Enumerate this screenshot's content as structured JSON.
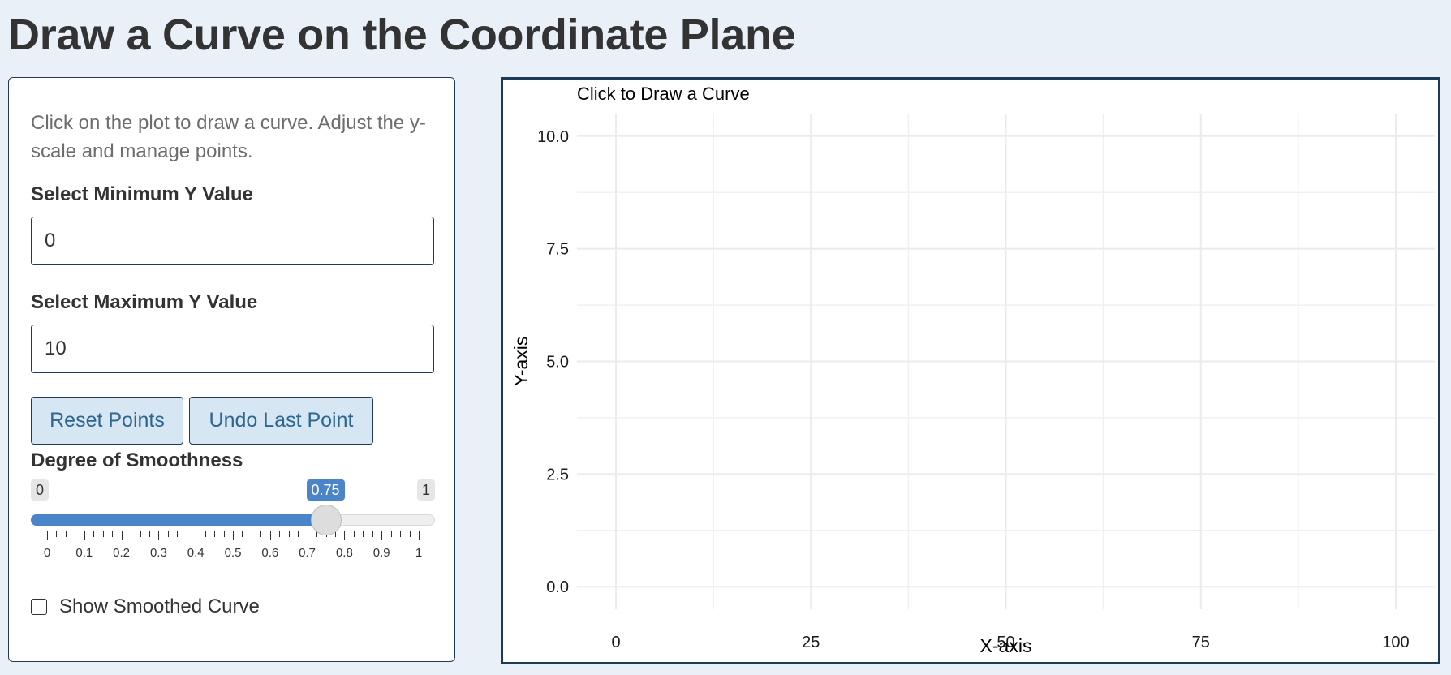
{
  "page_title": "Draw a Curve on the Coordinate Plane",
  "sidebar": {
    "help_text": "Click on the plot to draw a curve. Adjust the y-scale and manage points.",
    "min_y": {
      "label": "Select Minimum Y Value",
      "value": "0"
    },
    "max_y": {
      "label": "Select Maximum Y Value",
      "value": "10"
    },
    "buttons": {
      "reset": "Reset Points",
      "undo": "Undo Last Point"
    },
    "smoothness": {
      "label": "Degree of Smoothness",
      "min_label": "0",
      "max_label": "1",
      "value_label": "0.75",
      "value": 0.75,
      "min": 0,
      "max": 1,
      "tick_labels": [
        "0",
        "0.1",
        "0.2",
        "0.3",
        "0.4",
        "0.5",
        "0.6",
        "0.7",
        "0.8",
        "0.9",
        "1"
      ]
    },
    "show_smoothed": {
      "label": "Show Smoothed Curve",
      "checked": false
    }
  },
  "colors": {
    "accent": "#4a84c9",
    "border": "#1f3a57",
    "button_bg": "#d6e6f2",
    "button_text": "#2f6690",
    "page_bg": "#e9f0f7"
  },
  "chart_data": {
    "type": "scatter",
    "title": "Click to Draw a Curve",
    "xlabel": "X-axis",
    "ylabel": "Y-axis",
    "xlim": [
      -5,
      105
    ],
    "ylim": [
      -0.5,
      10.5
    ],
    "x_ticks": [
      0,
      25,
      50,
      75,
      100
    ],
    "x_tick_labels": [
      "0",
      "25",
      "50",
      "75",
      "100"
    ],
    "y_ticks": [
      0,
      2.5,
      5,
      7.5,
      10
    ],
    "y_tick_labels": [
      "0.0",
      "2.5",
      "5.0",
      "7.5",
      "10.0"
    ],
    "grid": true,
    "points": []
  }
}
